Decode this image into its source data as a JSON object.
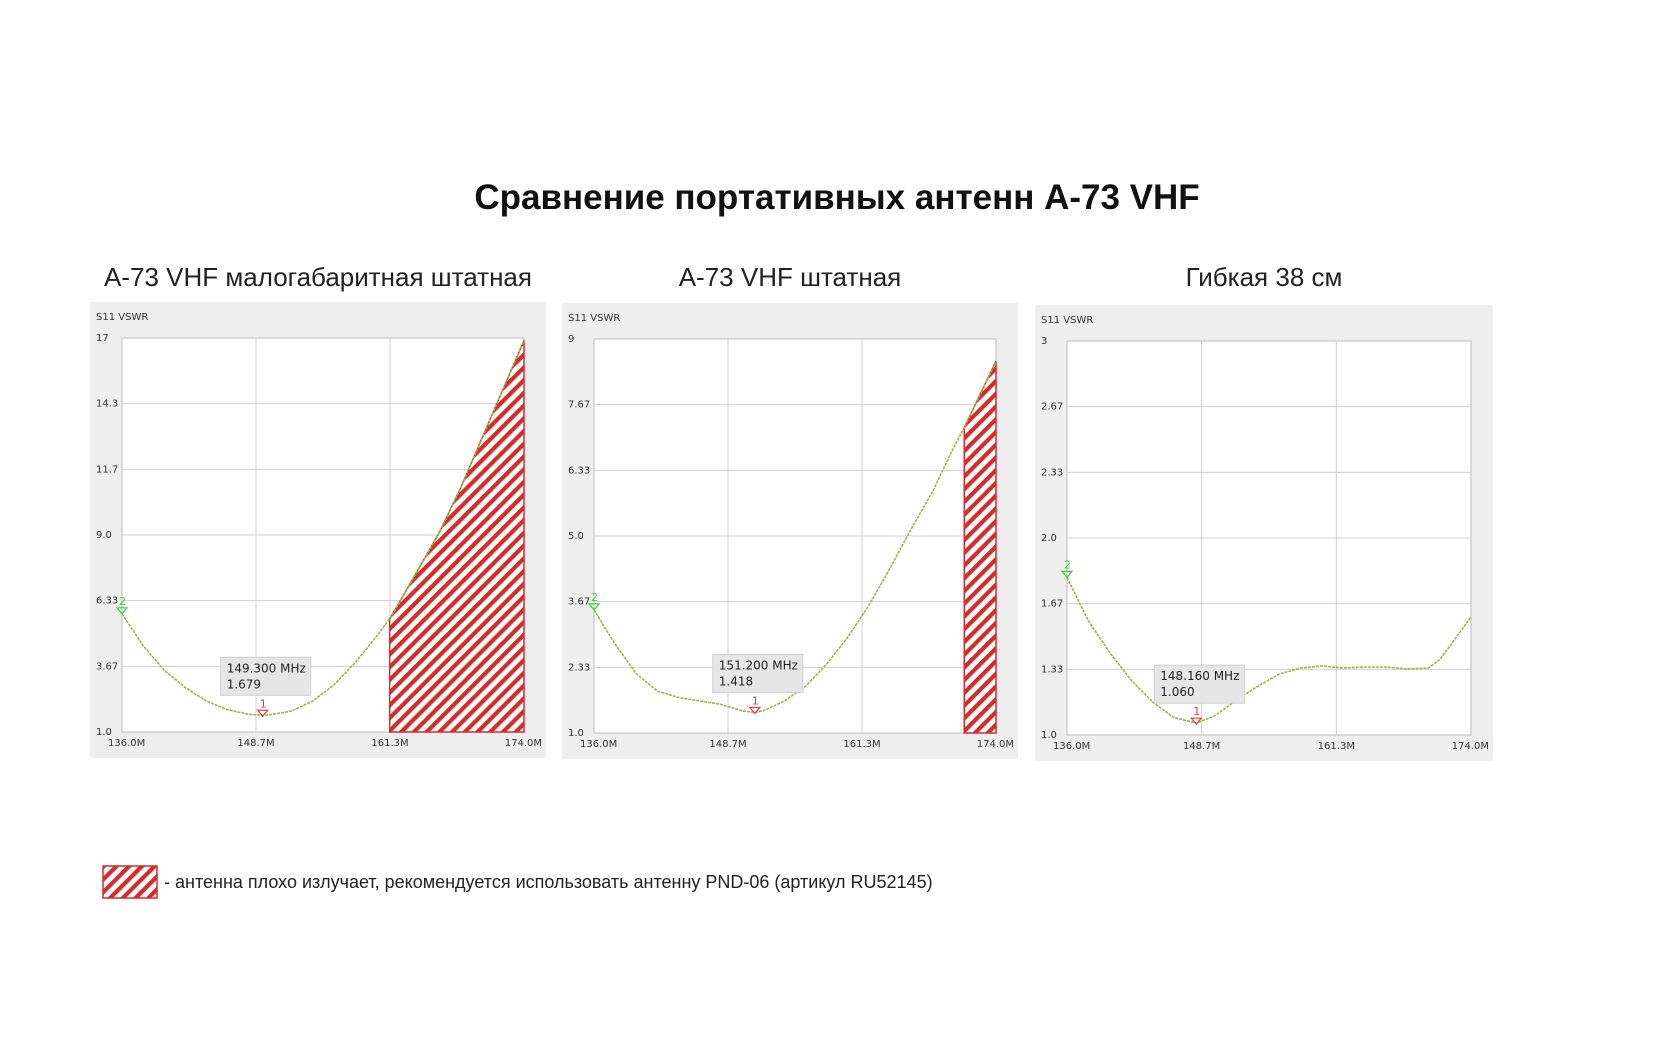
{
  "title": "Сравнение портативных антенн А-73  VHF",
  "legend": {
    "text": "- антенна плохо излучает, рекомендуется использовать антенну PND-06 (артикул RU52145)",
    "hatch_color": "#d42c2c"
  },
  "colors": {
    "trace": "#9bb54a",
    "marker1": "#e04040",
    "marker2": "#3ccd3c",
    "grid": "#d0d0d0"
  },
  "chart_data": [
    {
      "type": "line",
      "title": "А-73 VHF малогабаритная штатная",
      "ylabel": "S11 VSWR",
      "xlim": [
        136.0,
        174.0
      ],
      "ylim": [
        1.0,
        17.0
      ],
      "x_ticks": [
        "136.0M",
        "148.7M",
        "161.3M",
        "174.0M"
      ],
      "y_ticks": [
        "17",
        "14.3",
        "11.7",
        "9.0",
        "6.33",
        "3.67",
        "1.0"
      ],
      "grid": true,
      "series": [
        {
          "x": [
            136.0,
            138.0,
            140.0,
            142.0,
            144.0,
            146.0,
            148.0,
            149.3,
            150.0,
            152.0,
            154.0,
            156.0,
            158.0,
            160.0,
            161.3,
            162.0,
            164.0,
            166.0,
            168.0,
            170.0,
            172.0,
            174.0
          ],
          "values": [
            5.8,
            4.5,
            3.5,
            2.8,
            2.25,
            1.9,
            1.72,
            1.679,
            1.7,
            1.85,
            2.25,
            2.9,
            3.8,
            4.85,
            5.6,
            6.1,
            7.6,
            9.1,
            10.9,
            12.9,
            14.9,
            16.9
          ]
        }
      ],
      "shaded_range": [
        161.3,
        174.0
      ],
      "marker": {
        "label": "1",
        "freq_text": "149.300 MHz",
        "value_text": "1.679",
        "x": 149.3,
        "y": 1.679
      },
      "marker2": {
        "label": "2",
        "x": 136.0,
        "y": 5.8
      }
    },
    {
      "type": "line",
      "title": "А-73 VHF штатная",
      "ylabel": "S11 VSWR",
      "xlim": [
        136.0,
        174.0
      ],
      "ylim": [
        1.0,
        9.0
      ],
      "x_ticks": [
        "136.0M",
        "148.7M",
        "161.3M",
        "174.0M"
      ],
      "y_ticks": [
        "9",
        "7.67",
        "6.33",
        "5.0",
        "3.67",
        "2.33",
        "1.0"
      ],
      "grid": true,
      "series": [
        {
          "x": [
            136.0,
            138.0,
            140.0,
            142.0,
            144.0,
            146.0,
            148.0,
            150.0,
            151.2,
            152.0,
            154.0,
            156.0,
            158.0,
            160.0,
            162.0,
            164.0,
            166.0,
            168.0,
            170.0,
            171.0,
            172.0,
            174.0
          ],
          "values": [
            3.5,
            2.8,
            2.2,
            1.85,
            1.72,
            1.65,
            1.58,
            1.45,
            1.418,
            1.45,
            1.65,
            1.95,
            2.4,
            2.95,
            3.6,
            4.35,
            5.15,
            5.9,
            6.8,
            7.2,
            7.65,
            8.55
          ]
        }
      ],
      "shaded_range": [
        171.0,
        174.0
      ],
      "marker": {
        "label": "1",
        "freq_text": "151.200 MHz",
        "value_text": "1.418",
        "x": 151.2,
        "y": 1.418
      },
      "marker2": {
        "label": "2",
        "x": 136.0,
        "y": 3.5
      }
    },
    {
      "type": "line",
      "title": "Гибкая 38 см",
      "ylabel": "S11 VSWR",
      "xlim": [
        136.0,
        174.0
      ],
      "ylim": [
        1.0,
        3.0
      ],
      "x_ticks": [
        "136.0M",
        "148.7M",
        "161.3M",
        "174.0M"
      ],
      "y_ticks": [
        "3",
        "2.67",
        "2.33",
        "2.0",
        "1.67",
        "1.33",
        "1.0"
      ],
      "grid": true,
      "series": [
        {
          "x": [
            136.0,
            138.0,
            140.0,
            142.0,
            144.0,
            146.0,
            148.16,
            150.0,
            152.0,
            154.0,
            156.0,
            158.0,
            160.0,
            162.0,
            164.0,
            166.0,
            168.0,
            170.0,
            171.0,
            172.0,
            174.0
          ],
          "values": [
            1.8,
            1.58,
            1.42,
            1.28,
            1.17,
            1.09,
            1.06,
            1.1,
            1.18,
            1.25,
            1.31,
            1.34,
            1.35,
            1.34,
            1.345,
            1.345,
            1.335,
            1.34,
            1.38,
            1.45,
            1.6
          ]
        }
      ],
      "shaded_range": null,
      "marker": {
        "label": "1",
        "freq_text": "148.160 MHz",
        "value_text": "1.060",
        "x": 148.16,
        "y": 1.06
      },
      "marker2": {
        "label": "2",
        "x": 136.0,
        "y": 1.8
      }
    }
  ]
}
